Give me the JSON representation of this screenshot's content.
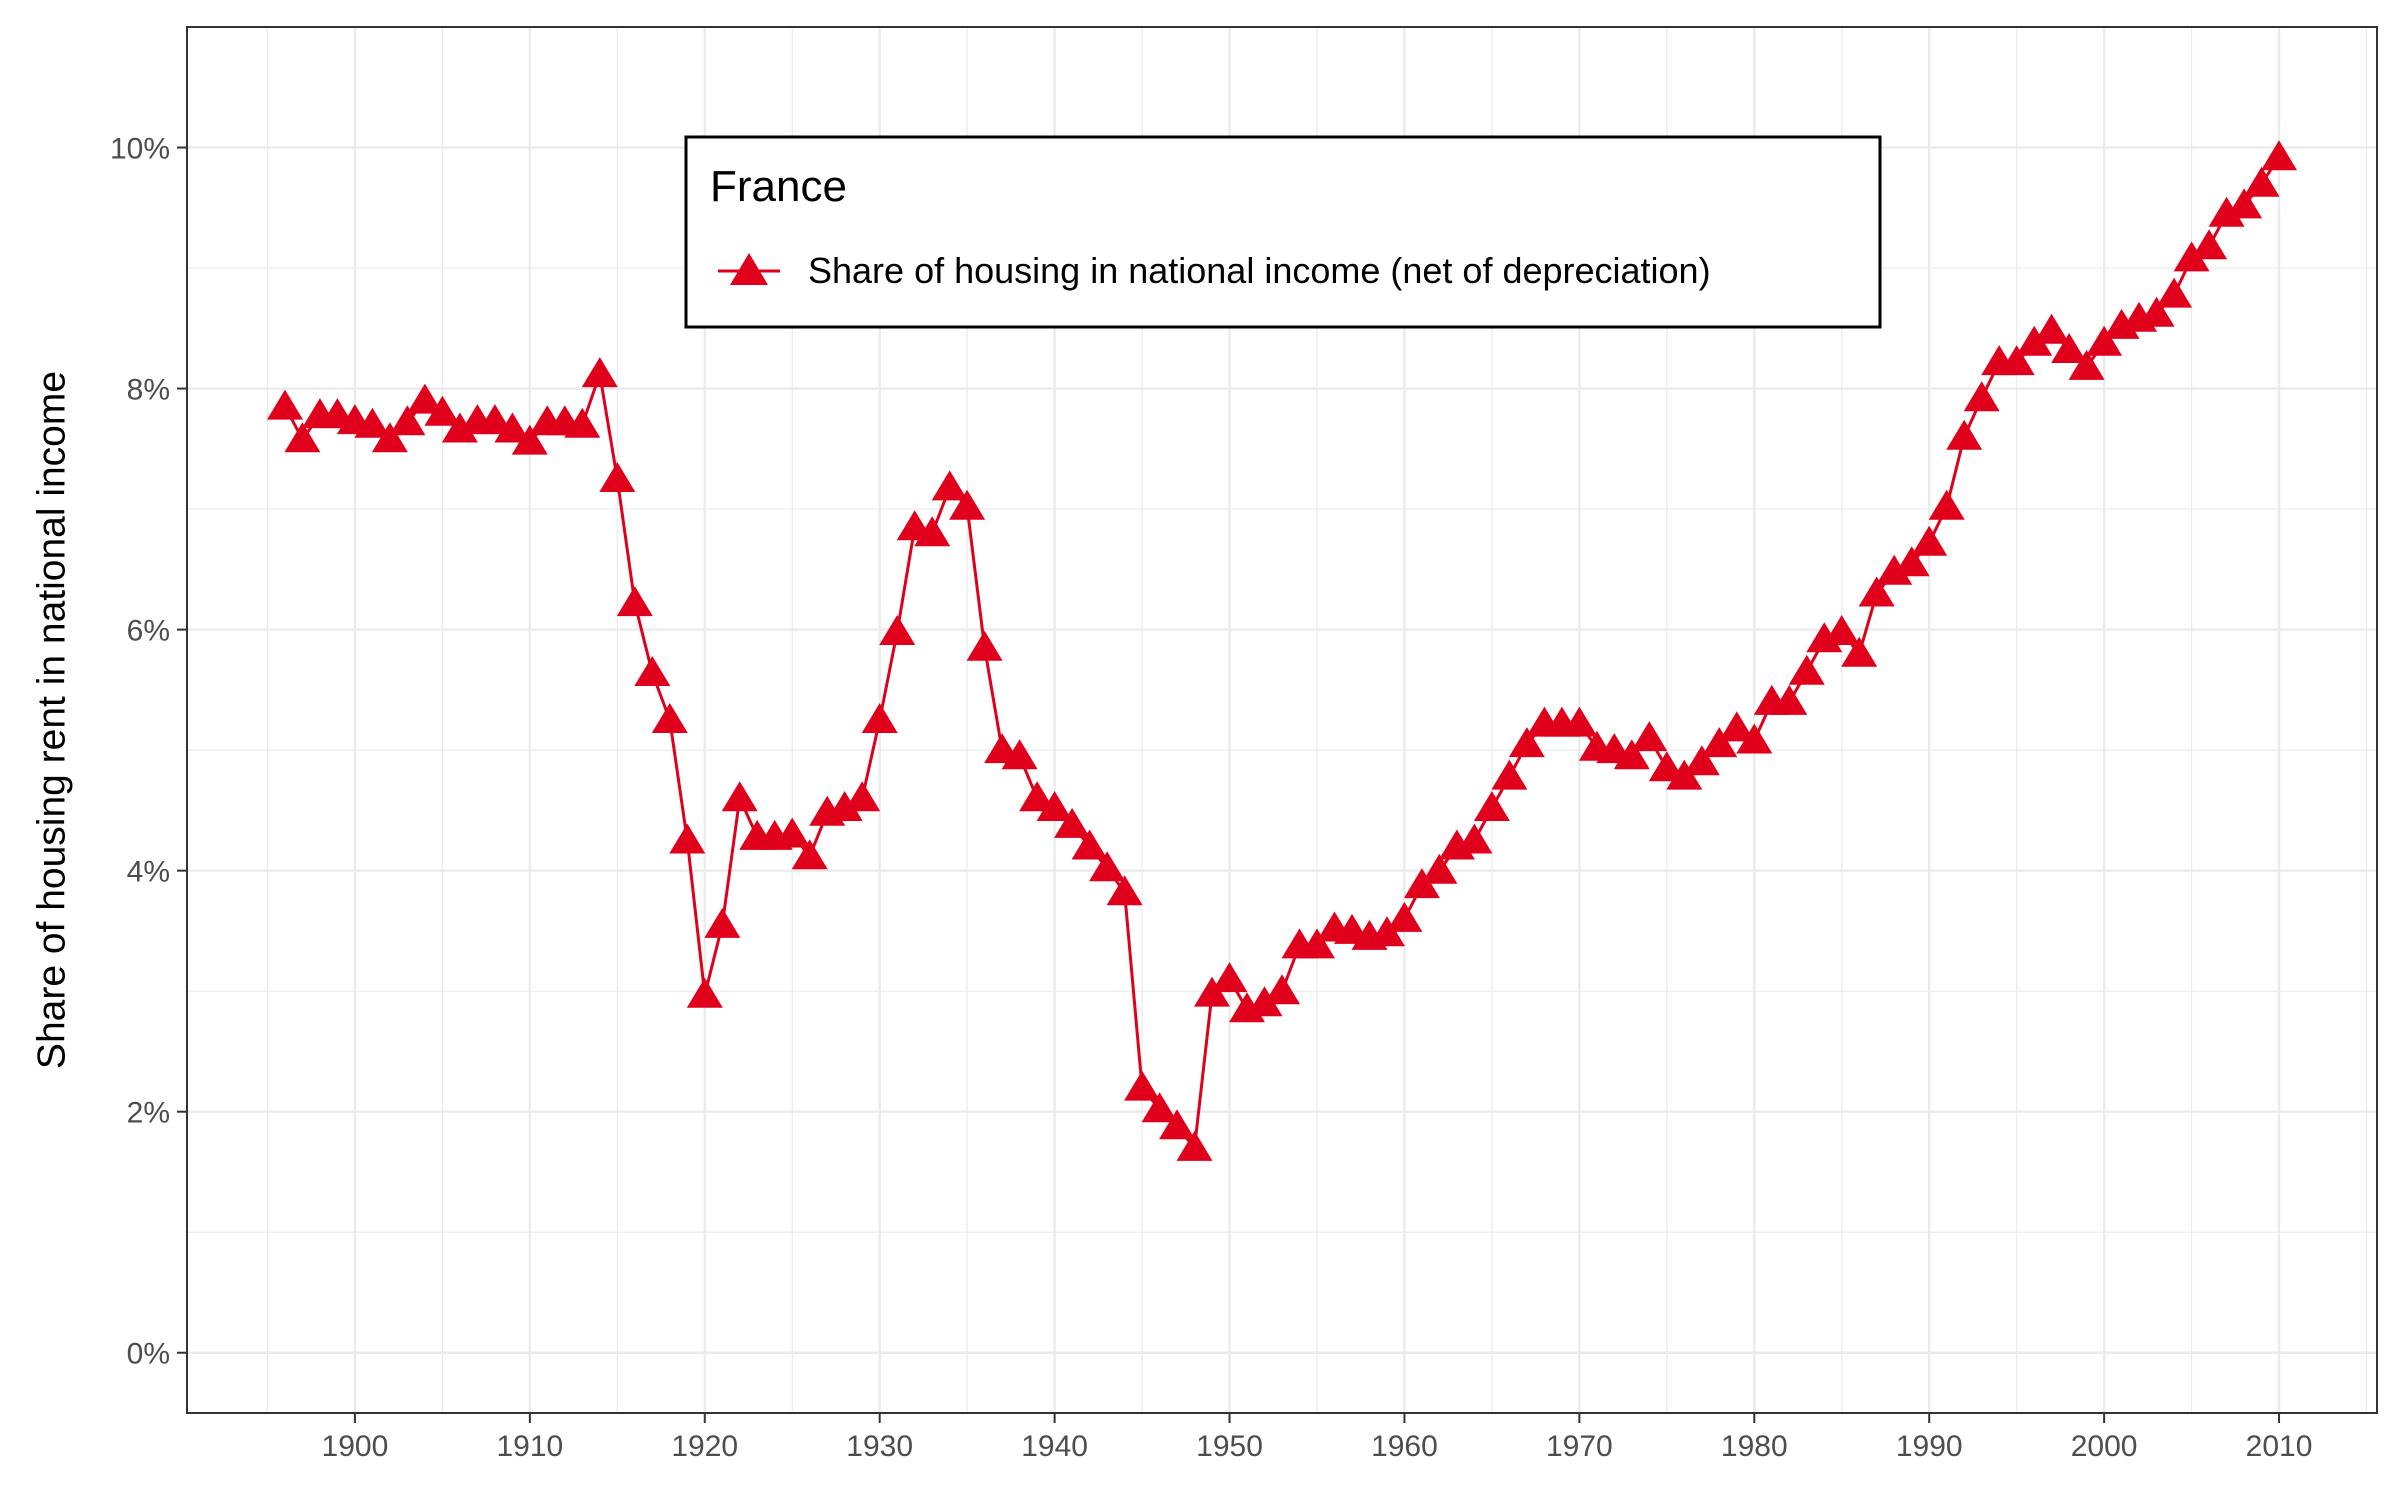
{
  "chart_data": {
    "type": "line",
    "ylabel": "Share of housing rent in national income",
    "xlabel": "",
    "xlim": [
      1890.4,
      2015.6
    ],
    "ylim": [
      -0.005,
      0.11
    ],
    "x_ticks": [
      1900,
      1910,
      1920,
      1930,
      1940,
      1950,
      1960,
      1970,
      1980,
      1990,
      2000,
      2010
    ],
    "y_ticks": [
      0,
      0.02,
      0.04,
      0.06,
      0.08,
      0.1
    ],
    "y_tick_labels": [
      "0%",
      "2%",
      "4%",
      "6%",
      "8%",
      "10%"
    ],
    "grid": true,
    "legend": {
      "title": "France",
      "position": "top-center"
    },
    "series": [
      {
        "name": "Share of housing in national income (net of depreciation)",
        "color": "#e0001b",
        "marker": "triangle",
        "x": [
          1896,
          1897,
          1898,
          1899,
          1900,
          1901,
          1902,
          1903,
          1904,
          1905,
          1906,
          1907,
          1908,
          1909,
          1910,
          1911,
          1912,
          1913,
          1914,
          1915,
          1916,
          1917,
          1918,
          1919,
          1920,
          1921,
          1922,
          1923,
          1924,
          1925,
          1926,
          1927,
          1928,
          1929,
          1930,
          1931,
          1932,
          1933,
          1934,
          1935,
          1936,
          1937,
          1938,
          1939,
          1940,
          1941,
          1942,
          1943,
          1944,
          1945,
          1946,
          1947,
          1948,
          1949,
          1950,
          1951,
          1952,
          1953,
          1954,
          1955,
          1956,
          1957,
          1958,
          1959,
          1960,
          1961,
          1962,
          1963,
          1964,
          1965,
          1966,
          1967,
          1968,
          1969,
          1970,
          1971,
          1972,
          1973,
          1974,
          1975,
          1976,
          1977,
          1978,
          1979,
          1980,
          1981,
          1982,
          1983,
          1984,
          1985,
          1986,
          1987,
          1988,
          1989,
          1990,
          1991,
          1992,
          1993,
          1994,
          1995,
          1996,
          1997,
          1998,
          1999,
          2000,
          2001,
          2002,
          2003,
          2004,
          2005,
          2006,
          2007,
          2008,
          2009,
          2010
        ],
        "y": [
          0.0785,
          0.0758,
          0.0778,
          0.0778,
          0.0773,
          0.077,
          0.0758,
          0.0772,
          0.079,
          0.078,
          0.0766,
          0.0773,
          0.0773,
          0.0766,
          0.0756,
          0.0772,
          0.0772,
          0.077,
          0.0812,
          0.0725,
          0.0622,
          0.0564,
          0.0525,
          0.0425,
          0.0297,
          0.0355,
          0.046,
          0.0428,
          0.0428,
          0.043,
          0.0412,
          0.0448,
          0.0452,
          0.046,
          0.0525,
          0.0598,
          0.0685,
          0.068,
          0.0718,
          0.0702,
          0.0585,
          0.05,
          0.0495,
          0.046,
          0.0452,
          0.0438,
          0.042,
          0.0402,
          0.0382,
          0.022,
          0.0202,
          0.0188,
          0.017,
          0.0298,
          0.031,
          0.0285,
          0.029,
          0.03,
          0.0338,
          0.0338,
          0.0352,
          0.035,
          0.0345,
          0.0348,
          0.036,
          0.0388,
          0.04,
          0.042,
          0.0425,
          0.0452,
          0.0478,
          0.0505,
          0.0522,
          0.0522,
          0.0522,
          0.0502,
          0.05,
          0.0495,
          0.051,
          0.0485,
          0.0478,
          0.049,
          0.0505,
          0.0518,
          0.0508,
          0.054,
          0.054,
          0.0565,
          0.0592,
          0.0598,
          0.058,
          0.063,
          0.0648,
          0.0655,
          0.0672,
          0.0702,
          0.076,
          0.0792,
          0.0822,
          0.0822,
          0.0838,
          0.0848,
          0.0832,
          0.0818,
          0.0838,
          0.0852,
          0.0858,
          0.0862,
          0.0878,
          0.0908,
          0.0918,
          0.0945,
          0.0952,
          0.097,
          0.0992
        ]
      }
    ]
  }
}
